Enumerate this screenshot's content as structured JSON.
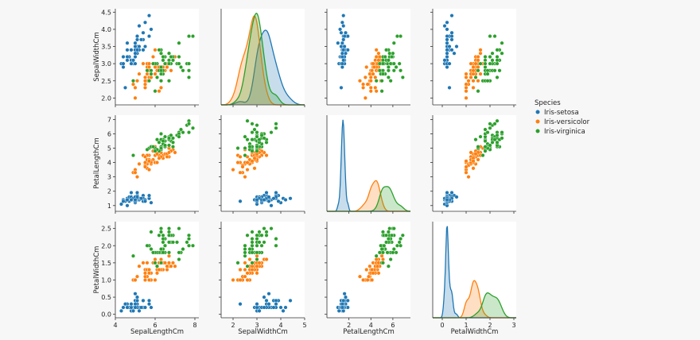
{
  "chart_data": {
    "type": "scatter",
    "legend": {
      "title": "Species",
      "placement": "right",
      "entries": [
        {
          "name": "Iris-setosa",
          "color": "#1f77b4"
        },
        {
          "name": "Iris-versicolor",
          "color": "#ff7f0e"
        },
        {
          "name": "Iris-virginica",
          "color": "#2ca02c"
        }
      ]
    },
    "rows": [
      {
        "var": "SepalWidthCm",
        "ylim": [
          1.8,
          4.6
        ],
        "yticks": [
          "2.0",
          "2.5",
          "3.0",
          "3.5",
          "4.0",
          "4.5"
        ],
        "ytick_values": [
          2.0,
          2.5,
          3.0,
          3.5,
          4.0,
          4.5
        ]
      },
      {
        "var": "PetalLengthCm",
        "ylim": [
          0.6,
          7.3
        ],
        "yticks": [
          "1",
          "2",
          "3",
          "4",
          "5",
          "6",
          "7"
        ],
        "ytick_values": [
          1,
          2,
          3,
          4,
          5,
          6,
          7
        ]
      },
      {
        "var": "PetalWidthCm",
        "ylim": [
          -0.1,
          2.7
        ],
        "yticks": [
          "0.0",
          "0.5",
          "1.0",
          "1.5",
          "2.0",
          "2.5"
        ],
        "ytick_values": [
          0.0,
          0.5,
          1.0,
          1.5,
          2.0,
          2.5
        ]
      }
    ],
    "columns": [
      {
        "var": "SepalLengthCm",
        "xlim": [
          4.0,
          8.2
        ],
        "xticks": [
          "4",
          "6",
          "8"
        ],
        "xtick_values": [
          4,
          6,
          8
        ]
      },
      {
        "var": "SepalWidthCm",
        "xlim": [
          1.5,
          5.0
        ],
        "xticks": [
          "2",
          "3",
          "4",
          "5"
        ],
        "xtick_values": [
          2,
          3,
          4,
          5
        ]
      },
      {
        "var": "PetalLengthCm",
        "xlim": [
          0.0,
          7.6
        ],
        "xticks": [
          "2",
          "4",
          "6"
        ],
        "xtick_values": [
          2,
          4,
          6
        ]
      },
      {
        "var": "PetalWidthCm",
        "xlim": [
          -0.4,
          3.1
        ],
        "xticks": [
          "0",
          "1",
          "2",
          "3"
        ],
        "xtick_values": [
          0,
          1,
          2,
          3
        ]
      }
    ],
    "species": [
      {
        "name": "Iris-setosa",
        "color": "#1f77b4",
        "SepalLengthCm": [
          5.1,
          4.9,
          4.7,
          4.6,
          5.0,
          5.4,
          4.6,
          5.0,
          4.4,
          4.9,
          5.4,
          4.8,
          4.8,
          4.3,
          5.8,
          5.7,
          5.4,
          5.1,
          5.7,
          5.1,
          5.4,
          5.1,
          4.6,
          5.1,
          4.8,
          5.0,
          5.0,
          5.2,
          5.2,
          4.7,
          4.8,
          5.4,
          5.2,
          5.5,
          4.9,
          5.0,
          5.5,
          4.9,
          4.4,
          5.1,
          5.0,
          4.5,
          4.4,
          5.0,
          5.1,
          4.8,
          5.1,
          4.6,
          5.3,
          5.0
        ],
        "SepalWidthCm": [
          3.5,
          3.0,
          3.2,
          3.1,
          3.6,
          3.9,
          3.4,
          3.4,
          2.9,
          3.1,
          3.7,
          3.4,
          3.0,
          3.0,
          4.0,
          4.4,
          3.9,
          3.5,
          3.8,
          3.8,
          3.4,
          3.7,
          3.6,
          3.3,
          3.4,
          3.0,
          3.4,
          3.5,
          3.4,
          3.2,
          3.1,
          3.4,
          4.1,
          4.2,
          3.1,
          3.2,
          3.5,
          3.1,
          3.0,
          3.4,
          3.5,
          2.3,
          3.2,
          3.5,
          3.8,
          3.0,
          3.8,
          3.2,
          3.7,
          3.3
        ],
        "PetalLengthCm": [
          1.4,
          1.4,
          1.3,
          1.5,
          1.4,
          1.7,
          1.4,
          1.5,
          1.4,
          1.5,
          1.5,
          1.6,
          1.4,
          1.1,
          1.2,
          1.5,
          1.3,
          1.4,
          1.7,
          1.5,
          1.7,
          1.5,
          1.0,
          1.7,
          1.9,
          1.6,
          1.6,
          1.5,
          1.4,
          1.6,
          1.6,
          1.5,
          1.5,
          1.4,
          1.5,
          1.2,
          1.3,
          1.5,
          1.3,
          1.5,
          1.3,
          1.3,
          1.3,
          1.6,
          1.9,
          1.4,
          1.6,
          1.4,
          1.5,
          1.4
        ],
        "PetalWidthCm": [
          0.2,
          0.2,
          0.2,
          0.2,
          0.2,
          0.4,
          0.3,
          0.2,
          0.2,
          0.1,
          0.2,
          0.2,
          0.1,
          0.1,
          0.2,
          0.4,
          0.4,
          0.3,
          0.3,
          0.3,
          0.2,
          0.4,
          0.2,
          0.5,
          0.2,
          0.2,
          0.4,
          0.2,
          0.2,
          0.2,
          0.2,
          0.4,
          0.1,
          0.2,
          0.1,
          0.2,
          0.2,
          0.1,
          0.2,
          0.2,
          0.3,
          0.3,
          0.2,
          0.6,
          0.4,
          0.3,
          0.2,
          0.2,
          0.2,
          0.2
        ]
      },
      {
        "name": "Iris-versicolor",
        "color": "#ff7f0e",
        "SepalLengthCm": [
          7.0,
          6.4,
          6.9,
          5.5,
          6.5,
          5.7,
          6.3,
          4.9,
          6.6,
          5.2,
          5.0,
          5.9,
          6.0,
          6.1,
          5.6,
          6.7,
          5.6,
          5.8,
          6.2,
          5.6,
          5.9,
          6.1,
          6.3,
          6.1,
          6.4,
          6.6,
          6.8,
          6.7,
          6.0,
          5.7,
          5.5,
          5.5,
          5.8,
          6.0,
          5.4,
          6.0,
          6.7,
          6.3,
          5.6,
          5.5,
          5.5,
          6.1,
          5.8,
          5.0,
          5.6,
          5.7,
          5.7,
          6.2,
          5.1,
          5.7
        ],
        "SepalWidthCm": [
          3.2,
          3.2,
          3.1,
          2.3,
          2.8,
          2.8,
          3.3,
          2.4,
          2.9,
          2.7,
          2.0,
          3.0,
          2.2,
          2.9,
          2.9,
          3.1,
          3.0,
          2.7,
          2.2,
          2.5,
          3.2,
          2.8,
          2.5,
          2.8,
          2.9,
          3.0,
          2.8,
          3.0,
          2.9,
          2.6,
          2.4,
          2.4,
          2.7,
          2.7,
          3.0,
          3.4,
          3.1,
          2.3,
          3.0,
          2.5,
          2.6,
          3.0,
          2.6,
          2.3,
          2.7,
          3.0,
          2.9,
          2.9,
          2.5,
          2.8
        ],
        "PetalLengthCm": [
          4.7,
          4.5,
          4.9,
          4.0,
          4.6,
          4.5,
          4.7,
          3.3,
          4.6,
          3.9,
          3.5,
          4.2,
          4.0,
          4.7,
          3.6,
          4.4,
          4.5,
          4.1,
          4.5,
          3.9,
          4.8,
          4.0,
          4.9,
          4.7,
          4.3,
          4.4,
          4.8,
          5.0,
          4.5,
          3.5,
          3.8,
          3.7,
          3.9,
          5.1,
          4.5,
          4.5,
          4.7,
          4.4,
          4.1,
          4.0,
          4.4,
          4.6,
          4.0,
          3.3,
          4.2,
          4.2,
          4.2,
          4.3,
          3.0,
          4.1
        ],
        "PetalWidthCm": [
          1.4,
          1.5,
          1.5,
          1.3,
          1.5,
          1.3,
          1.6,
          1.0,
          1.3,
          1.4,
          1.0,
          1.5,
          1.0,
          1.4,
          1.3,
          1.4,
          1.5,
          1.0,
          1.5,
          1.1,
          1.8,
          1.3,
          1.5,
          1.2,
          1.3,
          1.4,
          1.4,
          1.7,
          1.5,
          1.0,
          1.1,
          1.0,
          1.2,
          1.6,
          1.5,
          1.6,
          1.5,
          1.3,
          1.3,
          1.3,
          1.2,
          1.4,
          1.2,
          1.0,
          1.3,
          1.2,
          1.3,
          1.3,
          1.1,
          1.3
        ]
      },
      {
        "name": "Iris-virginica",
        "color": "#2ca02c",
        "SepalLengthCm": [
          6.3,
          5.8,
          7.1,
          6.3,
          6.5,
          7.6,
          4.9,
          7.3,
          6.7,
          7.2,
          6.5,
          6.4,
          6.8,
          5.7,
          5.8,
          6.4,
          6.5,
          7.7,
          7.7,
          6.0,
          6.9,
          5.6,
          7.7,
          6.3,
          6.7,
          7.2,
          6.2,
          6.1,
          6.4,
          7.2,
          7.4,
          7.9,
          6.4,
          6.3,
          6.1,
          7.7,
          6.3,
          6.4,
          6.0,
          6.9,
          6.7,
          6.9,
          5.8,
          6.8,
          6.7,
          6.7,
          6.3,
          6.5,
          6.2,
          5.9
        ],
        "SepalWidthCm": [
          3.3,
          2.7,
          3.0,
          2.9,
          3.0,
          3.0,
          2.5,
          2.9,
          2.5,
          3.6,
          3.2,
          2.7,
          3.0,
          2.5,
          2.8,
          3.2,
          3.0,
          3.8,
          2.6,
          2.2,
          3.2,
          2.8,
          2.8,
          2.7,
          3.3,
          3.2,
          2.8,
          3.0,
          2.8,
          3.0,
          2.8,
          3.8,
          2.8,
          2.8,
          2.6,
          3.0,
          3.4,
          3.1,
          3.0,
          3.1,
          3.1,
          3.1,
          2.7,
          3.2,
          3.3,
          3.0,
          2.5,
          3.0,
          3.4,
          3.0
        ],
        "PetalLengthCm": [
          6.0,
          5.1,
          5.9,
          5.6,
          5.8,
          6.6,
          4.5,
          6.3,
          5.8,
          6.1,
          5.1,
          5.3,
          5.5,
          5.0,
          5.1,
          5.3,
          5.5,
          6.7,
          6.9,
          5.0,
          5.7,
          4.9,
          6.7,
          4.9,
          5.7,
          6.0,
          4.8,
          4.9,
          5.6,
          5.8,
          6.1,
          6.4,
          5.6,
          5.1,
          5.6,
          6.1,
          5.6,
          5.5,
          4.8,
          5.4,
          5.6,
          5.1,
          5.1,
          5.9,
          5.7,
          5.2,
          5.0,
          5.2,
          5.4,
          5.1
        ],
        "PetalWidthCm": [
          2.5,
          1.9,
          2.1,
          1.8,
          2.2,
          2.1,
          1.7,
          1.8,
          1.8,
          2.5,
          2.0,
          1.9,
          2.1,
          2.0,
          2.4,
          2.3,
          1.8,
          2.2,
          2.3,
          1.5,
          2.3,
          2.0,
          2.0,
          1.8,
          2.1,
          1.8,
          1.8,
          1.8,
          2.1,
          1.6,
          1.9,
          2.0,
          2.2,
          1.5,
          1.4,
          2.3,
          2.4,
          1.8,
          1.8,
          2.1,
          2.4,
          2.3,
          1.9,
          2.3,
          2.5,
          2.3,
          1.9,
          2.0,
          2.3,
          1.8
        ]
      }
    ],
    "density_row_col": [
      [
        0,
        1
      ],
      [
        1,
        2
      ],
      [
        2,
        3
      ]
    ]
  }
}
